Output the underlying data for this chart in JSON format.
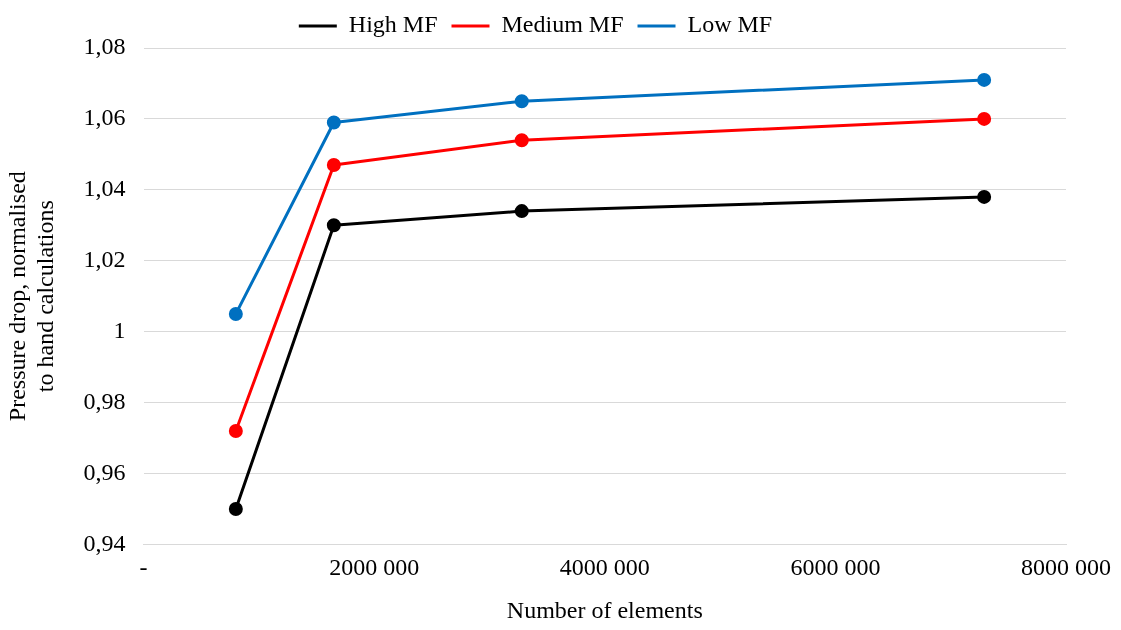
{
  "chart_data": {
    "type": "line",
    "xlabel": "Number of elements",
    "ylabel": "Pressure drop, normalised to hand calculations",
    "x": [
      800000,
      1650000,
      3280000,
      7290000
    ],
    "series": [
      {
        "name": "High MF",
        "color": "#000000",
        "values": [
          0.95,
          1.03,
          1.034,
          1.038
        ]
      },
      {
        "name": "Medium MF",
        "color": "#ff0000",
        "values": [
          0.972,
          1.047,
          1.054,
          1.06
        ]
      },
      {
        "name": "Low MF",
        "color": "#0070c0",
        "values": [
          1.005,
          1.059,
          1.065,
          1.071
        ]
      }
    ],
    "xlim": [
      0,
      8000000
    ],
    "xticks": [
      {
        "value": 0,
        "label": "-"
      },
      {
        "value": 2000000,
        "label": "2000 000"
      },
      {
        "value": 4000000,
        "label": "4000 000"
      },
      {
        "value": 6000000,
        "label": "6000 000"
      },
      {
        "value": 8000000,
        "label": "8000 000"
      }
    ],
    "ylim": [
      0.94,
      1.08
    ],
    "yticks": [
      {
        "value": 0.94,
        "label": "0,94"
      },
      {
        "value": 0.96,
        "label": "0,96"
      },
      {
        "value": 0.98,
        "label": "0,98"
      },
      {
        "value": 1,
        "label": "1"
      },
      {
        "value": 1.02,
        "label": "1,02"
      },
      {
        "value": 1.04,
        "label": "1,04"
      },
      {
        "value": 1.06,
        "label": "1,06"
      },
      {
        "value": 1.08,
        "label": "1,08"
      }
    ],
    "grid": "y",
    "legend": "top",
    "marker": "circle",
    "line_style": "solid"
  }
}
